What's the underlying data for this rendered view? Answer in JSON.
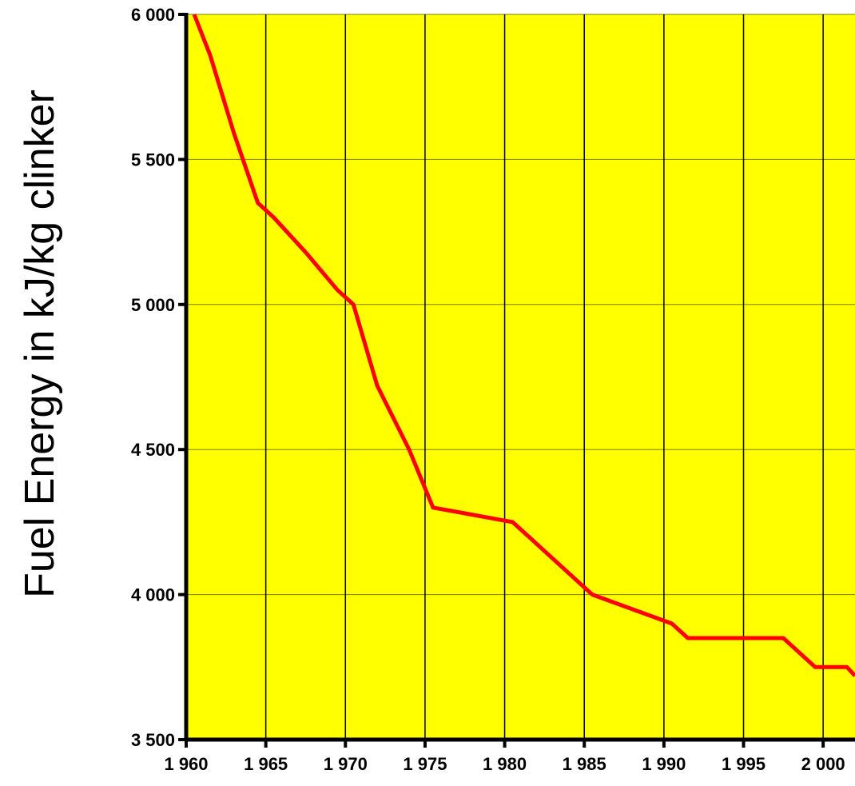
{
  "chart_data": {
    "type": "line",
    "title": "",
    "xlabel": "",
    "ylabel": "Fuel Energy in kJ/kg clinker",
    "xlim": [
      1960,
      2002
    ],
    "ylim": [
      3500,
      6000
    ],
    "x_ticks": [
      1960,
      1965,
      1970,
      1975,
      1980,
      1985,
      1990,
      1995,
      2000
    ],
    "x_tick_labels": [
      "1 960",
      "1 965",
      "1 970",
      "1 975",
      "1 980",
      "1 985",
      "1 990",
      "1 995",
      "2 000"
    ],
    "y_ticks": [
      3500,
      4000,
      4500,
      5000,
      5500,
      6000
    ],
    "y_tick_labels": [
      "3 500",
      "4 000",
      "4 500",
      "5 000",
      "5 500",
      "6 000"
    ],
    "grid": "horizontal and vertical",
    "legend": "none",
    "colors": {
      "plot_background": "#FFFF00",
      "line": "#FF0000",
      "gridline": "#000000",
      "axis": "#000000"
    },
    "series": [
      {
        "x": [
          1960.5,
          1961.5,
          1963,
          1964.5,
          1965.5,
          1967.5,
          1969.5,
          1970.5,
          1972,
          1974,
          1975.5,
          1977.5,
          1979.5,
          1980.5,
          1981.5,
          1983.5,
          1985.5,
          1988.5,
          1990.5,
          1991.5,
          1994,
          1997.5,
          1999.5,
          2000.5,
          2001.5,
          2002
        ],
        "y": [
          6000,
          5860,
          5590,
          5350,
          5300,
          5180,
          5050,
          5000,
          4720,
          4500,
          4300,
          4280,
          4260,
          4250,
          4200,
          4100,
          4000,
          3940,
          3900,
          3850,
          3850,
          3850,
          3750,
          3750,
          3750,
          3720
        ]
      }
    ]
  }
}
